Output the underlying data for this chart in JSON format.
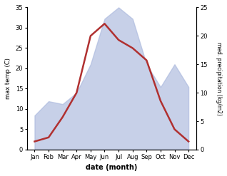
{
  "months": [
    "Jan",
    "Feb",
    "Mar",
    "Apr",
    "May",
    "Jun",
    "Jul",
    "Aug",
    "Sep",
    "Oct",
    "Nov",
    "Dec"
  ],
  "temp": [
    2,
    3,
    8,
    14,
    28,
    31,
    27,
    25,
    22,
    12,
    5,
    2
  ],
  "precip": [
    6,
    8.5,
    8,
    10,
    15,
    23,
    25,
    23,
    15,
    11,
    15,
    11
  ],
  "temp_color": "#b03030",
  "precip_fill_color": "#aab8dd",
  "precip_fill_alpha": 0.65,
  "xlabel": "date (month)",
  "ylabel_left": "max temp (C)",
  "ylabel_right": "med. precipitation (kg/m2)",
  "ylim_left": [
    0,
    35
  ],
  "ylim_right": [
    0,
    25
  ],
  "yticks_left": [
    0,
    5,
    10,
    15,
    20,
    25,
    30,
    35
  ],
  "yticks_right": [
    0,
    5,
    10,
    15,
    20,
    25
  ],
  "bg_color": "#ffffff",
  "line_width": 1.8
}
